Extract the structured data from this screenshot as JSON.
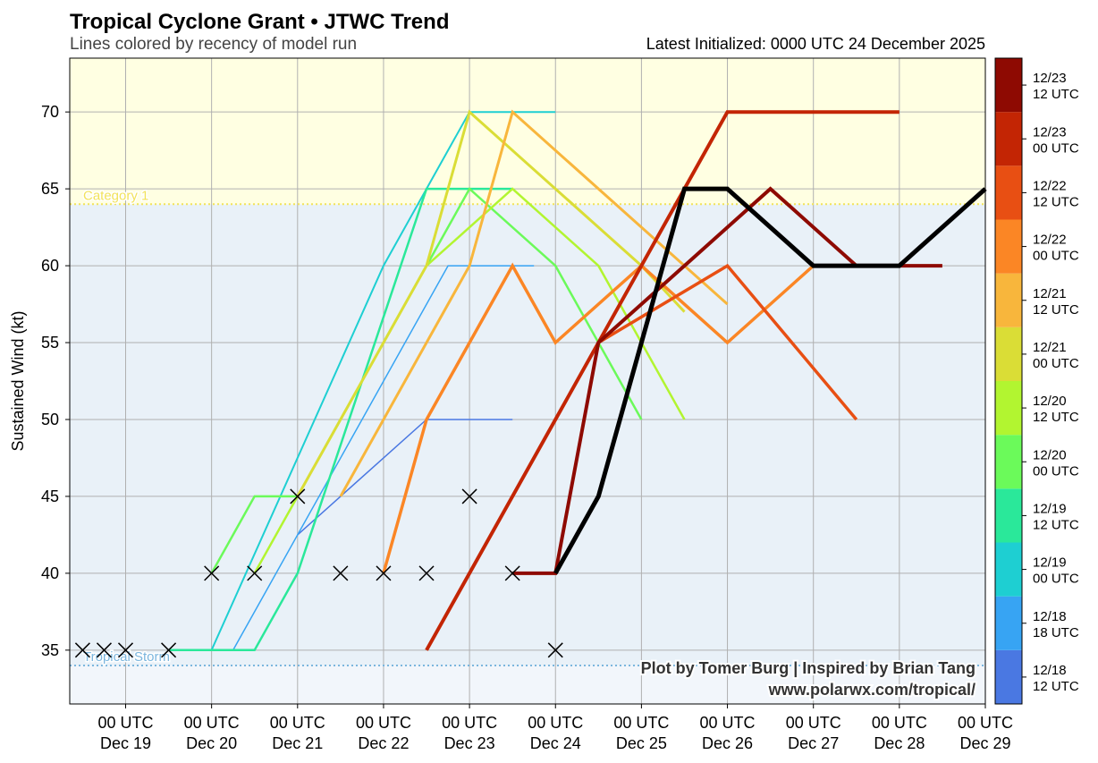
{
  "chart_data": {
    "type": "line",
    "title": "Tropical Cyclone Grant • JTWC Trend",
    "subtitle": "Lines colored by recency of model run",
    "initialized": "Latest Initialized: 0000 UTC 24 December 2025",
    "ylabel": "Sustained Wind (kt)",
    "xlabel": "",
    "ylim": [
      31.5,
      73.5
    ],
    "xlim": [
      18.35,
      29.0
    ],
    "yticks": [
      35,
      40,
      45,
      50,
      55,
      60,
      65,
      70
    ],
    "xticks": [
      {
        "x": 19,
        "l1": "00 UTC",
        "l2": "Dec 19"
      },
      {
        "x": 20,
        "l1": "00 UTC",
        "l2": "Dec 20"
      },
      {
        "x": 21,
        "l1": "00 UTC",
        "l2": "Dec 21"
      },
      {
        "x": 22,
        "l1": "00 UTC",
        "l2": "Dec 22"
      },
      {
        "x": 23,
        "l1": "00 UTC",
        "l2": "Dec 23"
      },
      {
        "x": 24,
        "l1": "00 UTC",
        "l2": "Dec 24"
      },
      {
        "x": 25,
        "l1": "00 UTC",
        "l2": "Dec 25"
      },
      {
        "x": 26,
        "l1": "00 UTC",
        "l2": "Dec 26"
      },
      {
        "x": 27,
        "l1": "00 UTC",
        "l2": "Dec 27"
      },
      {
        "x": 28,
        "l1": "00 UTC",
        "l2": "Dec 28"
      },
      {
        "x": 29,
        "l1": "00 UTC",
        "l2": "Dec 29"
      }
    ],
    "categories": [
      {
        "label": "Tropical Storm",
        "value": 34,
        "color": "#7bb6de"
      },
      {
        "label": "Category 1",
        "value": 64,
        "color": "#f2e35a"
      }
    ],
    "bands": [
      {
        "from": 31.5,
        "to": 34,
        "color": "#f2f6fb"
      },
      {
        "from": 34,
        "to": 64,
        "color": "#e9f1f8"
      },
      {
        "from": 64,
        "to": 73.5,
        "color": "#ffffe2"
      }
    ],
    "observations": [
      [
        18.5,
        35
      ],
      [
        18.75,
        35
      ],
      [
        19.0,
        35
      ],
      [
        19.5,
        35
      ],
      [
        20.0,
        40
      ],
      [
        20.5,
        40
      ],
      [
        21.0,
        45
      ],
      [
        21.5,
        40
      ],
      [
        22.0,
        40
      ],
      [
        22.5,
        40
      ],
      [
        23.0,
        45
      ],
      [
        23.5,
        40
      ],
      [
        24.0,
        35
      ]
    ],
    "colorbar": [
      {
        "line1": "12/18",
        "line2": "12 UTC",
        "color": "#4a78e2"
      },
      {
        "line1": "12/18",
        "line2": "18 UTC",
        "color": "#37a4f3"
      },
      {
        "line1": "12/19",
        "line2": "00 UTC",
        "color": "#1ecfd2"
      },
      {
        "line1": "12/19",
        "line2": "12 UTC",
        "color": "#2ae89a"
      },
      {
        "line1": "12/20",
        "line2": "00 UTC",
        "color": "#6bfa5a"
      },
      {
        "line1": "12/20",
        "line2": "12 UTC",
        "color": "#b2f530"
      },
      {
        "line1": "12/21",
        "line2": "00 UTC",
        "color": "#dadd36"
      },
      {
        "line1": "12/21",
        "line2": "12 UTC",
        "color": "#f8b63c"
      },
      {
        "line1": "12/22",
        "line2": "00 UTC",
        "color": "#fb8625"
      },
      {
        "line1": "12/22",
        "line2": "12 UTC",
        "color": "#e84f13"
      },
      {
        "line1": "12/23",
        "line2": "00 UTC",
        "color": "#c32504"
      },
      {
        "line1": "12/23",
        "line2": "12 UTC",
        "color": "#8e0a02"
      }
    ],
    "series": [
      {
        "name": "12/18 12 UTC",
        "color": "#4a78e2",
        "width": 1.5,
        "points": [
          [
            21.0,
            42.5
          ],
          [
            21.5,
            45
          ],
          [
            22.5,
            50
          ],
          [
            23.5,
            50
          ]
        ]
      },
      {
        "name": "12/18 18 UTC",
        "color": "#37a4f3",
        "width": 1.5,
        "points": [
          [
            20.25,
            35
          ],
          [
            22.75,
            60
          ],
          [
            23.75,
            60
          ]
        ]
      },
      {
        "name": "12/19 00 UTC",
        "color": "#1ecfd2",
        "width": 2,
        "points": [
          [
            19.75,
            35
          ],
          [
            20.0,
            35
          ],
          [
            22.0,
            60
          ],
          [
            22.5,
            65
          ],
          [
            23.0,
            70
          ],
          [
            24.0,
            70
          ]
        ]
      },
      {
        "name": "12/19 12 UTC",
        "color": "#2ae89a",
        "width": 2.5,
        "points": [
          [
            19.5,
            35
          ],
          [
            20.5,
            35
          ],
          [
            21.0,
            40
          ],
          [
            22.5,
            65
          ],
          [
            23.5,
            65
          ]
        ]
      },
      {
        "name": "12/20 00 UTC",
        "color": "#6bfa5a",
        "width": 2.5,
        "points": [
          [
            20.0,
            40
          ],
          [
            20.5,
            45
          ],
          [
            21.0,
            45
          ],
          [
            22.5,
            60
          ],
          [
            23.0,
            65
          ],
          [
            24.0,
            60
          ],
          [
            25.0,
            50
          ]
        ]
      },
      {
        "name": "12/20 12 UTC",
        "color": "#b2f530",
        "width": 2.5,
        "points": [
          [
            20.5,
            40
          ],
          [
            21.0,
            45
          ],
          [
            22.5,
            60
          ],
          [
            23.5,
            65
          ],
          [
            24.5,
            60
          ],
          [
            25.5,
            50
          ]
        ]
      },
      {
        "name": "12/21 00 UTC",
        "color": "#dadd36",
        "width": 3,
        "points": [
          [
            21.0,
            45
          ],
          [
            22.5,
            60
          ],
          [
            23.0,
            70
          ],
          [
            25.0,
            60
          ],
          [
            25.5,
            57
          ]
        ]
      },
      {
        "name": "12/21 12 UTC",
        "color": "#f8b63c",
        "width": 3,
        "points": [
          [
            21.5,
            45
          ],
          [
            23.0,
            60
          ],
          [
            23.5,
            70
          ],
          [
            26.0,
            57.5
          ]
        ]
      },
      {
        "name": "12/22 00 UTC",
        "color": "#fb8625",
        "width": 3.5,
        "points": [
          [
            22.0,
            40
          ],
          [
            22.5,
            50
          ],
          [
            23.5,
            60
          ],
          [
            24.0,
            55
          ],
          [
            25.0,
            60
          ],
          [
            26.0,
            55
          ],
          [
            27.0,
            60
          ]
        ]
      },
      {
        "name": "12/22 12 UTC",
        "color": "#e84f13",
        "width": 3.5,
        "points": [
          [
            24.5,
            55
          ],
          [
            26.0,
            60
          ],
          [
            27.5,
            50
          ]
        ]
      },
      {
        "name": "12/23 00 UTC",
        "color": "#c32504",
        "width": 4,
        "points": [
          [
            22.5,
            35
          ],
          [
            24.0,
            50
          ],
          [
            26.0,
            70
          ],
          [
            28.0,
            70
          ]
        ]
      },
      {
        "name": "12/23 12 UTC",
        "color": "#8e0a02",
        "width": 4,
        "points": [
          [
            23.5,
            40
          ],
          [
            24.0,
            40
          ],
          [
            24.5,
            55
          ],
          [
            25.5,
            60
          ],
          [
            26.5,
            65
          ],
          [
            27.5,
            60
          ],
          [
            28.5,
            60
          ]
        ]
      },
      {
        "name": "12/24 00 UTC",
        "color": "#000000",
        "width": 5,
        "points": [
          [
            24.0,
            40
          ],
          [
            24.5,
            45
          ],
          [
            25.5,
            65
          ],
          [
            26.0,
            65
          ],
          [
            27.0,
            60
          ],
          [
            28.0,
            60
          ],
          [
            29.0,
            65
          ]
        ]
      }
    ]
  },
  "credit": {
    "line1": "Plot by Tomer Burg | Inspired by Brian Tang",
    "line2": "www.polarwx.com/tropical/"
  }
}
